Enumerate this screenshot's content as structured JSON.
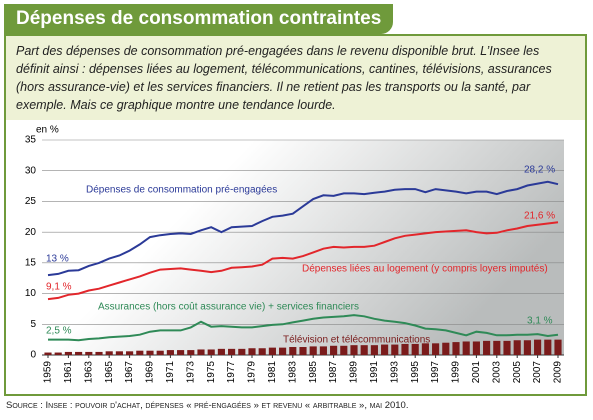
{
  "header": {
    "title": "Dépenses de consommation contraintes"
  },
  "description": "Part des dépenses de consommation pré-engagées dans le revenu disponible brut. L’Insee les définit ainsi : dépenses liées au logement, télécommunications, cantines, télévisions, assurances (hors assurance-vie) et les services financiers. Il ne retient pas les transports ou la santé, par exemple. Mais ce graphique montre une tendance lourde.",
  "source": "Source : Insee : pouvoir d'achat, dépenses « pré-engagées » et revenu « arbitrable », mai 2010.",
  "chart_data": {
    "type": "line",
    "y_label": "en %",
    "x": [
      1959,
      1960,
      1961,
      1962,
      1963,
      1964,
      1965,
      1966,
      1967,
      1968,
      1969,
      1970,
      1971,
      1972,
      1973,
      1974,
      1975,
      1976,
      1977,
      1978,
      1979,
      1980,
      1981,
      1982,
      1983,
      1984,
      1985,
      1986,
      1987,
      1988,
      1989,
      1990,
      1991,
      1992,
      1993,
      1994,
      1995,
      1996,
      1997,
      1998,
      1999,
      2000,
      2001,
      2002,
      2003,
      2004,
      2005,
      2006,
      2007,
      2008,
      2009
    ],
    "xlim": [
      1959,
      2009
    ],
    "xticks": [
      1959,
      1961,
      1963,
      1965,
      1967,
      1969,
      1971,
      1973,
      1975,
      1977,
      1979,
      1981,
      1983,
      1985,
      1987,
      1989,
      1991,
      1993,
      1995,
      1997,
      1999,
      2001,
      2003,
      2005,
      2007,
      2009
    ],
    "ylim": [
      0,
      35
    ],
    "yticks": [
      0,
      5,
      10,
      15,
      20,
      25,
      30,
      35
    ],
    "grid": true,
    "series": [
      {
        "name": "Dépenses de consommation pré-engagées",
        "color": "#2b3a98",
        "values": [
          13,
          13.2,
          13.7,
          13.8,
          14.5,
          15,
          15.7,
          16.2,
          17,
          18,
          19.2,
          19.5,
          19.7,
          19.8,
          19.7,
          20.3,
          20.8,
          20,
          20.8,
          20.9,
          21,
          21.8,
          22.5,
          22.7,
          23,
          24.2,
          25.4,
          26,
          25.9,
          26.3,
          26.3,
          26.2,
          26.4,
          26.6,
          26.9,
          27,
          27,
          26.5,
          27,
          26.8,
          26.6,
          26.3,
          26.6,
          26.6,
          26.2,
          26.7,
          27,
          27.6,
          27.9,
          28.2,
          27.8
        ]
      },
      {
        "name": "Dépenses liées au logement (y compris loyers imputés)",
        "color": "#e2262b",
        "values": [
          9.1,
          9.3,
          9.8,
          10,
          10.5,
          10.8,
          11.3,
          11.8,
          12.3,
          12.8,
          13.4,
          13.9,
          14,
          14.1,
          13.9,
          13.7,
          13.5,
          13.7,
          14.2,
          14.3,
          14.4,
          14.7,
          15.7,
          15.8,
          15.7,
          16.1,
          16.7,
          17.3,
          17.6,
          17.5,
          17.6,
          17.6,
          17.8,
          18.4,
          19,
          19.4,
          19.6,
          19.8,
          20,
          20.1,
          20.2,
          20.3,
          20,
          19.8,
          19.9,
          20.3,
          20.6,
          21,
          21.2,
          21.4,
          21.6
        ]
      },
      {
        "name": "Assurances (hors coût assurance vie) + services financiers",
        "color": "#2f8a57",
        "values": [
          2.5,
          2.5,
          2.5,
          2.4,
          2.6,
          2.7,
          2.9,
          3,
          3.1,
          3.3,
          3.8,
          4,
          4,
          4,
          4.5,
          5.4,
          4.6,
          4.7,
          4.6,
          4.5,
          4.5,
          4.7,
          4.9,
          5,
          5.3,
          5.6,
          5.9,
          6.1,
          6.2,
          6.3,
          6.5,
          6.3,
          5.9,
          5.6,
          5.4,
          5.2,
          4.8,
          4.3,
          4.2,
          4,
          3.6,
          3.2,
          3.8,
          3.6,
          3.2,
          3.2,
          3.3,
          3.3,
          3.4,
          3.1,
          3.3
        ]
      },
      {
        "name": "Télévision et télécommunications",
        "color": "#7a1b1b",
        "type": "bar",
        "values": [
          0.4,
          0.4,
          0.5,
          0.5,
          0.5,
          0.5,
          0.6,
          0.6,
          0.6,
          0.7,
          0.7,
          0.7,
          0.8,
          0.8,
          0.8,
          0.9,
          0.9,
          1,
          1,
          1,
          1.1,
          1.1,
          1.2,
          1.2,
          1.3,
          1.3,
          1.4,
          1.4,
          1.5,
          1.5,
          1.6,
          1.6,
          1.6,
          1.7,
          1.7,
          1.8,
          1.8,
          1.9,
          1.9,
          2,
          2.1,
          2.2,
          2.2,
          2.3,
          2.3,
          2.3,
          2.4,
          2.4,
          2.5,
          2.5,
          2.5
        ]
      }
    ],
    "annotations": [
      "13 %",
      "28,2 %",
      "9,1 %",
      "21,6 %",
      "2,5 %",
      "3,1 %"
    ]
  }
}
